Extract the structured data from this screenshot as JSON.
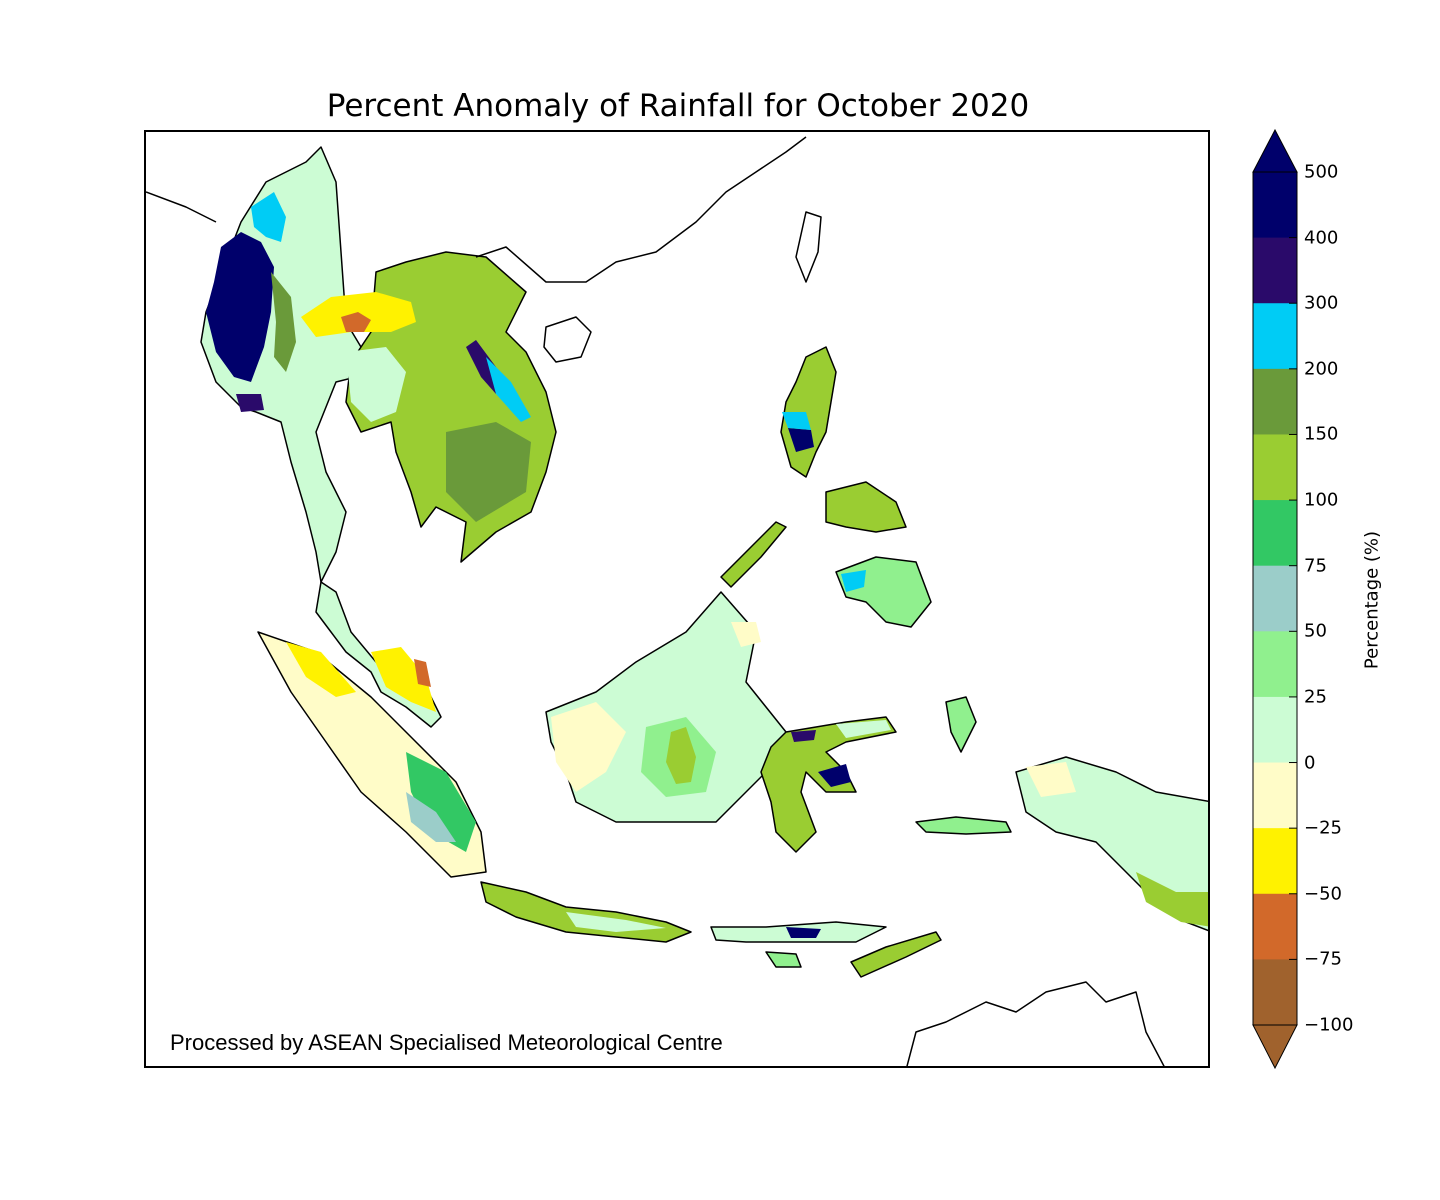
{
  "title": "Percent Anomaly of Rainfall for October 2020",
  "credit": "Processed by ASEAN Specialised Meteorological Centre",
  "colorbar": {
    "title": "Percentage (%)",
    "ticks": [
      "500",
      "400",
      "300",
      "200",
      "150",
      "100",
      "75",
      "50",
      "25",
      "0",
      "−25",
      "−50",
      "−75",
      "−100"
    ],
    "bins_top_to_bottom": [
      {
        "range": "400 to 500",
        "color": "#00006b"
      },
      {
        "range": "300 to 400",
        "color": "#2a0a6a"
      },
      {
        "range": "200 to 300",
        "color": "#00ccf5"
      },
      {
        "range": "150 to 200",
        "color": "#6a9a3a"
      },
      {
        "range": "100 to 150",
        "color": "#9acd32"
      },
      {
        "range": "75 to 100",
        "color": "#32c864"
      },
      {
        "range": "50 to 75",
        "color": "#9bcdc9"
      },
      {
        "range": "25 to 50",
        "color": "#90f08e"
      },
      {
        "range": "0 to 25",
        "color": "#ccfcd4"
      },
      {
        "range": "-25 to 0",
        "color": "#fffcc8"
      },
      {
        "range": "-50 to -25",
        "color": "#fff200"
      },
      {
        "range": "-75 to -50",
        "color": "#d2692a"
      },
      {
        "range": "-100 to -75",
        "color": "#a0622d"
      }
    ],
    "extend_top_color": "#00006b",
    "extend_bottom_color": "#a0622d"
  }
}
